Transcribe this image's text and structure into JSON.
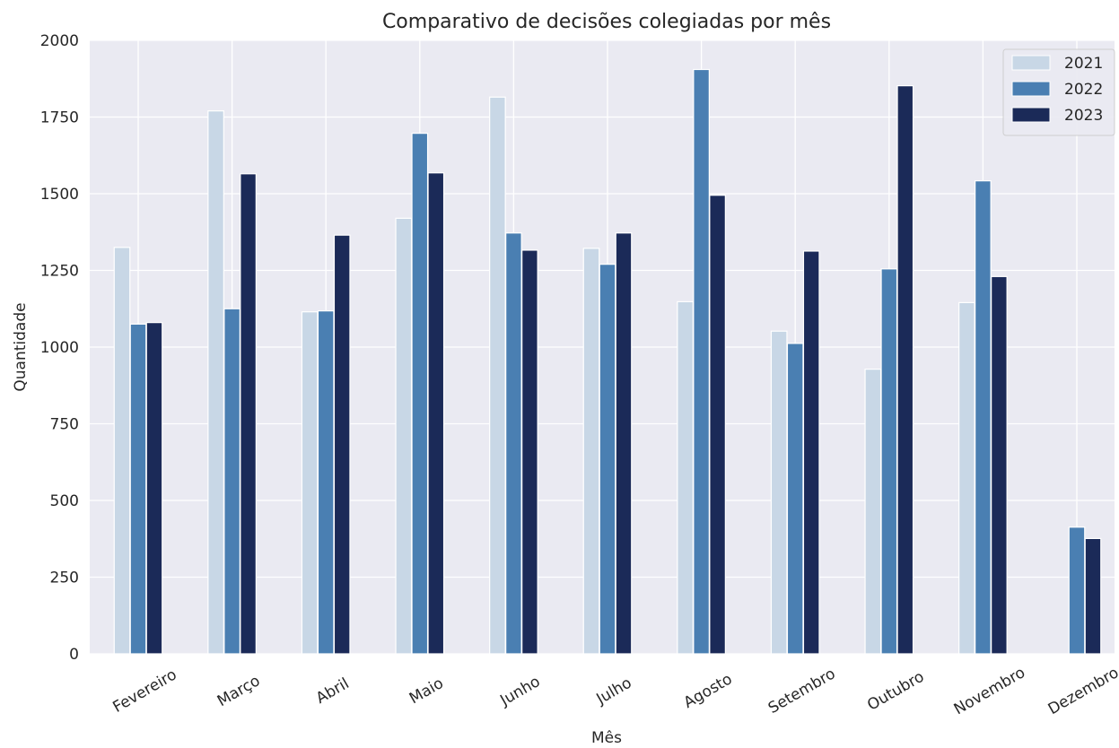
{
  "chart_data": {
    "type": "bar",
    "title": "Comparativo de decisões colegiadas por mês",
    "xlabel": "Mês",
    "ylabel": "Quantidade",
    "ylim": [
      0,
      2000
    ],
    "yticks": [
      0,
      250,
      500,
      750,
      1000,
      1250,
      1500,
      1750,
      2000
    ],
    "grid": true,
    "legend_position": "top-right",
    "categories": [
      "Fevereiro",
      "Março",
      "Abril",
      "Maio",
      "Junho",
      "Julho",
      "Agosto",
      "Setembro",
      "Outubro",
      "Novembro",
      "Dezembro"
    ],
    "series": [
      {
        "name": "2021",
        "color": "#c8d7e6",
        "values": [
          1325,
          1770,
          1115,
          1420,
          1815,
          1322,
          1148,
          1052,
          928,
          1145,
          null
        ]
      },
      {
        "name": "2022",
        "color": "#4a7fb2",
        "values": [
          1075,
          1125,
          1118,
          1697,
          1372,
          1270,
          1905,
          1012,
          1255,
          1542,
          413
        ]
      },
      {
        "name": "2023",
        "color": "#1b2a58",
        "values": [
          1080,
          1565,
          1365,
          1568,
          1316,
          1372,
          1495,
          1313,
          1852,
          1230,
          376
        ]
      }
    ]
  }
}
